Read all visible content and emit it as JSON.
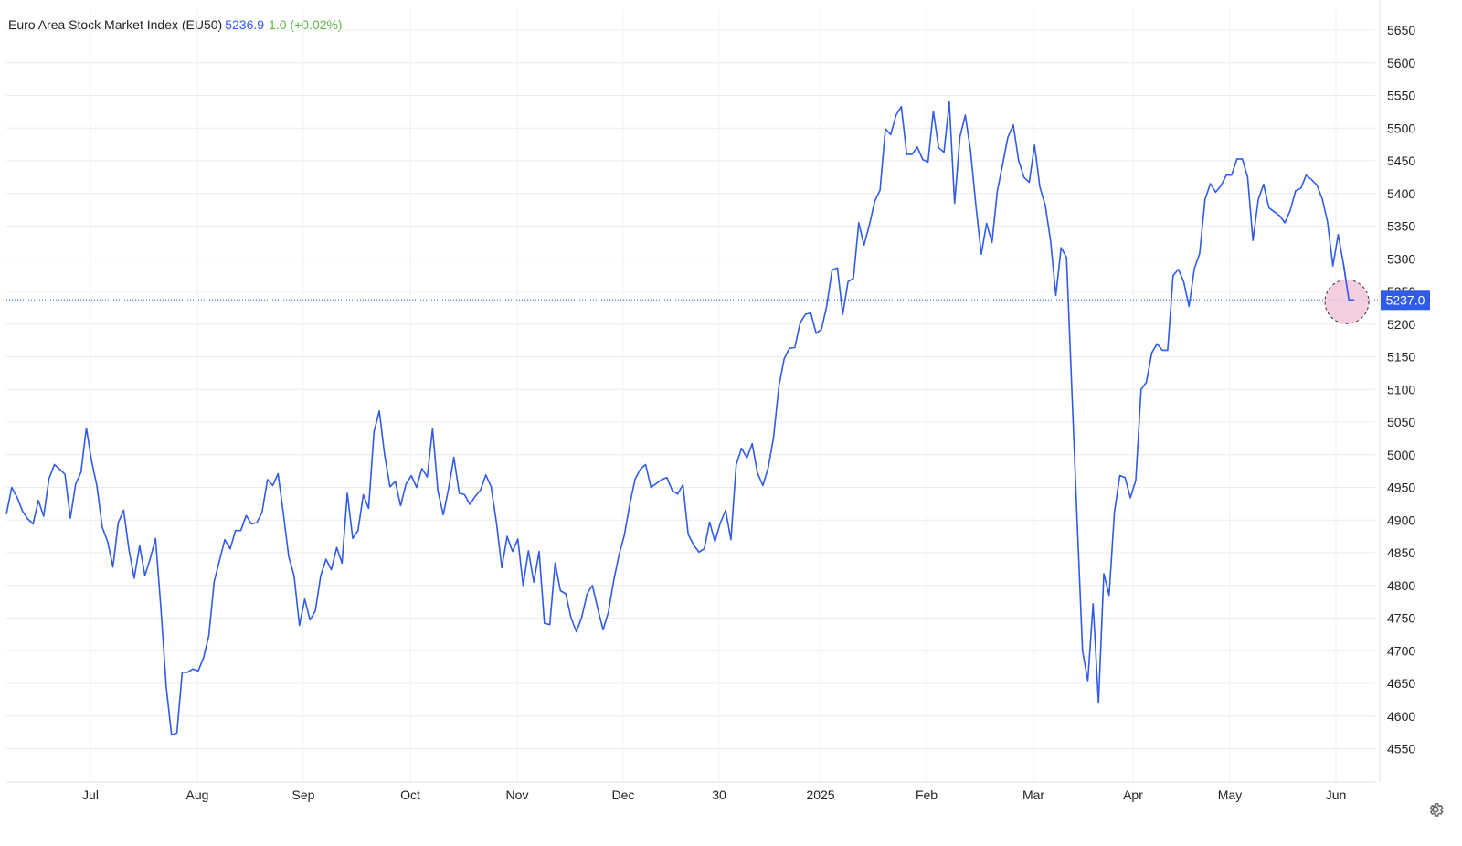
{
  "header": {
    "title": "Euro Area Stock Market Index (EU50)",
    "last": "5236.9",
    "change": "1.0 (+0.02%)"
  },
  "colors": {
    "line": "#2f5be8",
    "change_positive": "#5bb543",
    "grid": "#ececec",
    "highlight": "#f4c6dc"
  },
  "settings_icon": "gear-icon",
  "chart_data": {
    "type": "line",
    "title": "Euro Area Stock Market Index (EU50)",
    "ylim": [
      4500,
      5650
    ],
    "yticks": [
      4550,
      4600,
      4650,
      4700,
      4750,
      4800,
      4850,
      4900,
      4950,
      5000,
      5050,
      5100,
      5150,
      5200,
      5250,
      5300,
      5350,
      5400,
      5450,
      5500,
      5550,
      5600,
      5650
    ],
    "xticks": [
      "Jul",
      "Aug",
      "Sep",
      "Oct",
      "Nov",
      "Dec",
      "30",
      "2025",
      "Feb",
      "Mar",
      "Apr",
      "May",
      "Jun"
    ],
    "grid": true,
    "last_value_label": "5237.0",
    "last_value": 5237.0,
    "series": [
      {
        "values": [
          4909,
          4950,
          4935,
          4914,
          4902,
          4894,
          4930,
          4906,
          4963,
          4985,
          4978,
          4970,
          4903,
          4955,
          4973,
          5041,
          4990,
          4952,
          4889,
          4867,
          4828,
          4896,
          4915,
          4855,
          4811,
          4861,
          4815,
          4841,
          4872,
          4765,
          4645,
          4571,
          4574,
          4667,
          4667,
          4672,
          4669,
          4689,
          4723,
          4806,
          4838,
          4870,
          4856,
          4884,
          4884,
          4907,
          4894,
          4896,
          4912,
          4962,
          4953,
          4971,
          4909,
          4844,
          4815,
          4739,
          4779,
          4747,
          4761,
          4815,
          4840,
          4824,
          4858,
          4834,
          4941,
          4872,
          4884,
          4939,
          4918,
          5035,
          5067,
          5000,
          4951,
          4959,
          4922,
          4955,
          4968,
          4950,
          4979,
          4966,
          5040,
          4945,
          4908,
          4948,
          4996,
          4941,
          4939,
          4924,
          4936,
          4946,
          4969,
          4951,
          4895,
          4827,
          4875,
          4852,
          4871,
          4800,
          4853,
          4805,
          4852,
          4742,
          4740,
          4834,
          4792,
          4787,
          4750,
          4729,
          4751,
          4787,
          4800,
          4765,
          4732,
          4759,
          4807,
          4847,
          4877,
          4923,
          4962,
          4978,
          4985,
          4950,
          4956,
          4962,
          4965,
          4945,
          4940,
          4954,
          4878,
          4862,
          4851,
          4856,
          4897,
          4867,
          4895,
          4915,
          4870,
          4985,
          5010,
          4995,
          5017,
          4972,
          4953,
          4980,
          5026,
          5105,
          5147,
          5163,
          5164,
          5202,
          5215,
          5217,
          5186,
          5192,
          5228,
          5283,
          5286,
          5215,
          5265,
          5270,
          5355,
          5321,
          5352,
          5388,
          5405,
          5499,
          5490,
          5520,
          5533,
          5460,
          5460,
          5471,
          5452,
          5448,
          5526,
          5470,
          5463,
          5540,
          5385,
          5487,
          5520,
          5465,
          5380,
          5307,
          5354,
          5325,
          5403,
          5444,
          5486,
          5505,
          5451,
          5425,
          5417,
          5474,
          5410,
          5382,
          5328,
          5244,
          5317,
          5302,
          5100,
          4900,
          4700,
          4654,
          4772,
          4620,
          4818,
          4785,
          4912,
          4968,
          4965,
          4934,
          4961,
          5100,
          5111,
          5156,
          5170,
          5160,
          5160,
          5274,
          5284,
          5265,
          5227,
          5285,
          5308,
          5391,
          5415,
          5402,
          5412,
          5428,
          5428,
          5453,
          5453,
          5425,
          5328,
          5391,
          5414,
          5378,
          5372,
          5366,
          5355,
          5374,
          5404,
          5408,
          5428,
          5421,
          5413,
          5392,
          5357,
          5289,
          5337,
          5292,
          5237,
          5237
        ]
      }
    ]
  }
}
